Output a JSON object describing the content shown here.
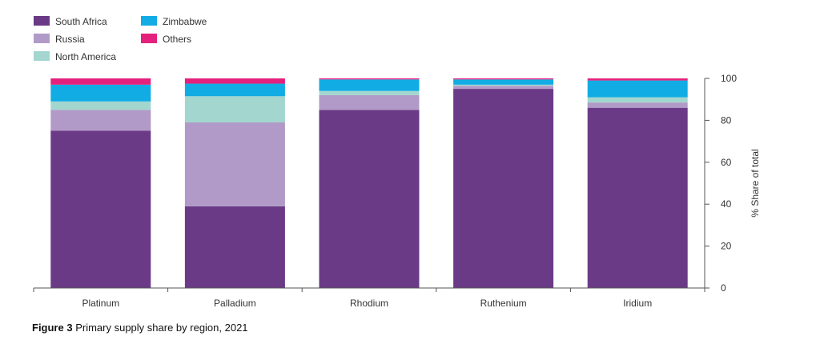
{
  "caption": {
    "figure_label": "Figure 3",
    "text": "Primary supply share by region, 2021"
  },
  "colors": {
    "South Africa": "#6b3a87",
    "Russia": "#b19ac7",
    "North America": "#a3d6cf",
    "Zimbabwe": "#12ace4",
    "Others": "#e4217c",
    "axis": "#555555"
  },
  "chart_data": {
    "type": "bar",
    "stacked": true,
    "title": "Primary supply share by region, 2021",
    "categories": [
      "Platinum",
      "Palladium",
      "Rhodium",
      "Ruthenium",
      "Iridium"
    ],
    "series": [
      {
        "name": "South Africa",
        "values": [
          75,
          39,
          85,
          95,
          86
        ]
      },
      {
        "name": "Russia",
        "values": [
          10,
          40,
          7,
          1.5,
          2.5
        ]
      },
      {
        "name": "North America",
        "values": [
          4,
          12.5,
          2,
          0.5,
          2.5
        ]
      },
      {
        "name": "Zimbabwe",
        "values": [
          8,
          6,
          5.5,
          2.5,
          8
        ]
      },
      {
        "name": "Others",
        "values": [
          3,
          2.5,
          0.5,
          0.5,
          1
        ]
      }
    ],
    "xlabel": "",
    "ylabel": "% Share of total",
    "ylim": [
      0,
      100
    ],
    "yticks": [
      0,
      20,
      40,
      60,
      80,
      100
    ],
    "y_axis_position": "right",
    "grid": false,
    "legend": {
      "placement": "top-left",
      "columns": [
        [
          "South Africa",
          "Russia",
          "North America"
        ],
        [
          "Zimbabwe",
          "Others"
        ]
      ]
    }
  }
}
